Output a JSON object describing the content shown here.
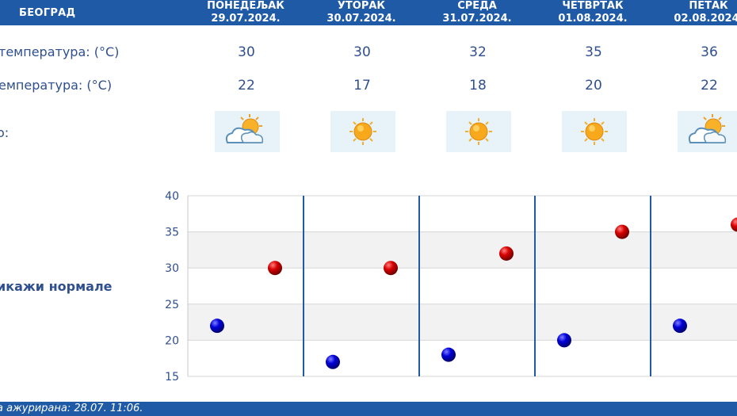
{
  "header": {
    "city": "БЕОГРАД",
    "days": [
      {
        "name": "ПОНЕДЕЉАК",
        "date": "29.07.2024."
      },
      {
        "name": "УТОРАК",
        "date": "30.07.2024."
      },
      {
        "name": "СРЕДА",
        "date": "31.07.2024."
      },
      {
        "name": "ЧЕТВРТАК",
        "date": "01.08.2024."
      },
      {
        "name": "ПЕТАК",
        "date": "02.08.2024."
      }
    ]
  },
  "rows": {
    "max_label": "температура: (°C)",
    "min_label": "емпература: (°C)",
    "sky_label": "о:"
  },
  "max_temps": [
    "30",
    "30",
    "32",
    "35",
    "36"
  ],
  "min_temps": [
    "22",
    "17",
    "18",
    "20",
    "22"
  ],
  "weather_icons": [
    "partly-cloudy-icon",
    "sunny-icon",
    "sunny-icon",
    "sunny-icon",
    "partly-cloudy-icon"
  ],
  "normals_link": "икажи нормале",
  "footer": {
    "updated": "а ажурирана:  28.07. 11:06."
  },
  "colors": {
    "header_bg": "#1f5aa6",
    "max_marker": "#cc0000",
    "min_marker": "#0000cc",
    "text": "#2f4f8f"
  },
  "chart_data": {
    "type": "scatter",
    "categories": [
      "ПОНЕДЕЉАК",
      "УТОРАК",
      "СРЕДА",
      "ЧЕТВРТАК",
      "ПЕТАК"
    ],
    "series": [
      {
        "values": [
          30,
          30,
          32,
          35,
          36
        ],
        "color": "#cc0000"
      },
      {
        "values": [
          22,
          17,
          18,
          20,
          22
        ],
        "color": "#0000cc"
      }
    ],
    "ylim": [
      15,
      40
    ],
    "yticks": [
      "15",
      "20",
      "25",
      "30",
      "35",
      "40"
    ],
    "grid": true
  }
}
